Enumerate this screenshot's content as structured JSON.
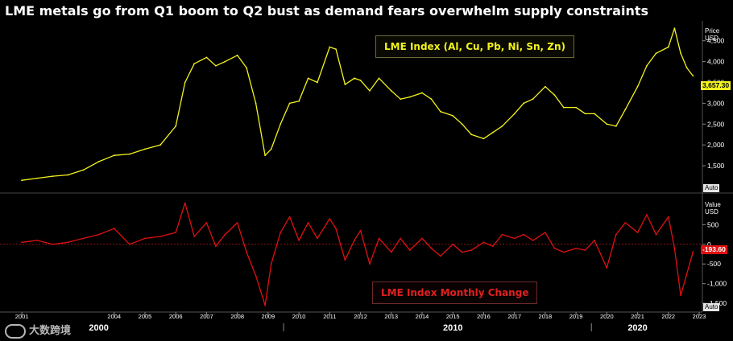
{
  "title": "LME metals go from Q1 boom to Q2 bust as demand fears overwhelm supply constraints",
  "watermark_text": "大数跨境",
  "chart_data": [
    {
      "type": "line",
      "series": [
        {
          "name": "LME Index (Al, Cu, Pb, Ni, Sn, Zn)",
          "color": "#f2f21d",
          "x": [
            2001.0,
            2001.5,
            2002.0,
            2002.5,
            2003.0,
            2003.5,
            2004.0,
            2004.5,
            2005.0,
            2005.5,
            2006.0,
            2006.3,
            2006.6,
            2007.0,
            2007.3,
            2007.6,
            2008.0,
            2008.3,
            2008.6,
            2008.9,
            2009.1,
            2009.4,
            2009.7,
            2010.0,
            2010.3,
            2010.6,
            2011.0,
            2011.2,
            2011.5,
            2011.8,
            2012.0,
            2012.3,
            2012.6,
            2013.0,
            2013.3,
            2013.6,
            2014.0,
            2014.3,
            2014.6,
            2015.0,
            2015.3,
            2015.6,
            2016.0,
            2016.3,
            2016.6,
            2017.0,
            2017.3,
            2017.6,
            2018.0,
            2018.3,
            2018.6,
            2019.0,
            2019.3,
            2019.6,
            2020.0,
            2020.3,
            2020.6,
            2021.0,
            2021.3,
            2021.6,
            2022.0,
            2022.2,
            2022.4,
            2022.6,
            2022.8
          ],
          "values": [
            1150,
            1200,
            1250,
            1280,
            1400,
            1600,
            1750,
            1780,
            1900,
            2000,
            2450,
            3500,
            3950,
            4100,
            3900,
            4000,
            4150,
            3850,
            3000,
            1750,
            1900,
            2500,
            3000,
            3050,
            3600,
            3500,
            4350,
            4300,
            3450,
            3600,
            3550,
            3300,
            3600,
            3300,
            3100,
            3150,
            3250,
            3100,
            2800,
            2700,
            2500,
            2250,
            2150,
            2300,
            2450,
            2750,
            3000,
            3100,
            3400,
            3200,
            2900,
            2900,
            2750,
            2750,
            2500,
            2450,
            2850,
            3400,
            3900,
            4200,
            4350,
            4800,
            4200,
            3850,
            3657.3
          ],
          "last_value_label": "3,657.30"
        }
      ],
      "yticks": [
        "1,500",
        "2,000",
        "2,500",
        "3,000",
        "3,500",
        "4,000",
        "4,500"
      ],
      "ylabel": "Price USD",
      "ylim": [
        1000,
        4900
      ],
      "grid": false,
      "legend": "top-center",
      "auto_label": "Auto"
    },
    {
      "type": "line",
      "series": [
        {
          "name": "LME Index Monthly Change",
          "color": "#e01010",
          "x": [
            2001.0,
            2001.5,
            2002.0,
            2002.5,
            2003.0,
            2003.5,
            2004.0,
            2004.5,
            2005.0,
            2005.5,
            2006.0,
            2006.3,
            2006.6,
            2007.0,
            2007.3,
            2007.6,
            2008.0,
            2008.3,
            2008.6,
            2008.9,
            2009.1,
            2009.4,
            2009.7,
            2010.0,
            2010.3,
            2010.6,
            2011.0,
            2011.2,
            2011.5,
            2011.8,
            2012.0,
            2012.3,
            2012.6,
            2013.0,
            2013.3,
            2013.6,
            2014.0,
            2014.3,
            2014.6,
            2015.0,
            2015.3,
            2015.6,
            2016.0,
            2016.3,
            2016.6,
            2017.0,
            2017.3,
            2017.6,
            2018.0,
            2018.3,
            2018.6,
            2019.0,
            2019.3,
            2019.6,
            2020.0,
            2020.3,
            2020.6,
            2021.0,
            2021.3,
            2021.6,
            2022.0,
            2022.2,
            2022.4,
            2022.6,
            2022.8
          ],
          "values": [
            50,
            100,
            0,
            50,
            150,
            250,
            400,
            0,
            150,
            200,
            300,
            1050,
            200,
            550,
            -50,
            250,
            550,
            -200,
            -800,
            -1550,
            -500,
            300,
            700,
            100,
            550,
            150,
            650,
            400,
            -400,
            100,
            350,
            -500,
            150,
            -200,
            150,
            -150,
            150,
            -100,
            -300,
            0,
            -200,
            -150,
            50,
            -50,
            250,
            150,
            250,
            100,
            300,
            -100,
            -200,
            -100,
            -150,
            100,
            -600,
            250,
            550,
            300,
            750,
            250,
            700,
            -100,
            -1300,
            -750,
            -193.6
          ],
          "last_value_label": "-193.60"
        }
      ],
      "yticks": [
        "-1,500",
        "-1,000",
        "-500",
        "0",
        "500"
      ],
      "ylabel": "Value USD",
      "ylim": [
        -1600,
        1100
      ],
      "grid": false,
      "legend": "bottom-center",
      "auto_label": "Auto"
    }
  ],
  "x_axis": {
    "years": [
      "2001",
      "2004",
      "2005",
      "2006",
      "2007",
      "2008",
      "2009",
      "2010",
      "2011",
      "2012",
      "2013",
      "2014",
      "2015",
      "2016",
      "2017",
      "2018",
      "2019",
      "2020",
      "2021",
      "2022",
      "2023"
    ],
    "year_values": [
      2001,
      2004,
      2005,
      2006,
      2007,
      2008,
      2009,
      2010,
      2011,
      2012,
      2013,
      2014,
      2015,
      2016,
      2017,
      2018,
      2019,
      2020,
      2021,
      2022,
      2023
    ],
    "decades": [
      "2000",
      "2010",
      "2020"
    ],
    "decade_values": [
      2003.5,
      2015.0,
      2021.0
    ]
  }
}
